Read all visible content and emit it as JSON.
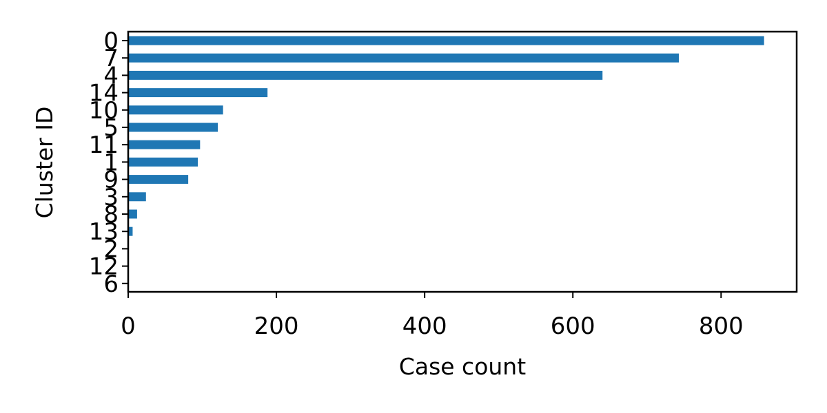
{
  "chart_data": {
    "type": "bar",
    "orientation": "horizontal",
    "categories": [
      "0",
      "7",
      "4",
      "14",
      "10",
      "5",
      "11",
      "1",
      "9",
      "3",
      "8",
      "13",
      "2",
      "12",
      "6"
    ],
    "values": [
      858,
      743,
      640,
      188,
      128,
      121,
      97,
      94,
      81,
      24,
      12,
      6,
      0,
      0,
      0
    ],
    "xlabel": "Case count",
    "ylabel": "Cluster ID",
    "xlim": [
      0,
      902
    ],
    "xticks": [
      0,
      200,
      400,
      600,
      800
    ],
    "grid": false,
    "legend": false,
    "bar_color": "#1f77b4"
  }
}
